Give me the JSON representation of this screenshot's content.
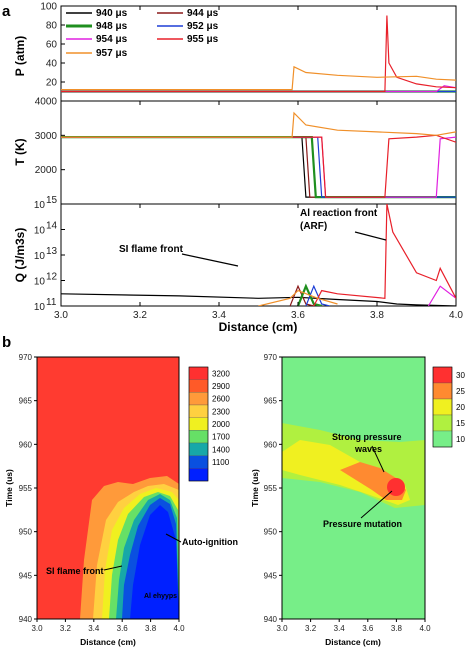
{
  "panel_labels": [
    "a",
    "b"
  ],
  "chart_data": [
    {
      "type": "line",
      "panel": "a",
      "subplot": "pressure",
      "ylabel": "P (atm)",
      "xlabel": "Distance (cm)",
      "xlim": [
        3.0,
        4.0
      ],
      "ylim": [
        0,
        100
      ],
      "xticks": [
        "3.0",
        "3.2",
        "3.4",
        "3.6",
        "3.8",
        "4.0"
      ],
      "yticks": [
        "20",
        "40",
        "60",
        "80",
        "100"
      ],
      "legend": "top-left",
      "series": [
        {
          "name": "940 μs",
          "color": "#000000",
          "x": [
            3.0,
            3.9,
            4.0
          ],
          "y": [
            10,
            10,
            10
          ]
        },
        {
          "name": "944 μs",
          "color": "#8b1a1a",
          "x": [
            3.0,
            3.9,
            4.0
          ],
          "y": [
            10,
            10,
            10
          ]
        },
        {
          "name": "948 μs",
          "color": "#1f8f1f",
          "x": [
            3.0,
            3.9,
            4.0
          ],
          "y": [
            10,
            10,
            10
          ]
        },
        {
          "name": "952 μs",
          "color": "#1e3fd6",
          "x": [
            3.0,
            3.9,
            4.0
          ],
          "y": [
            10,
            10,
            10
          ]
        },
        {
          "name": "954 μs",
          "color": "#e020e0",
          "x": [
            3.0,
            3.95,
            3.97,
            4.0
          ],
          "y": [
            10,
            10,
            16,
            14
          ]
        },
        {
          "name": "955 μs",
          "color": "#e8202a",
          "x": [
            3.0,
            3.82,
            3.825,
            3.83,
            3.85,
            3.9,
            3.95,
            4.0
          ],
          "y": [
            10,
            10,
            90,
            40,
            25,
            18,
            15,
            14
          ]
        },
        {
          "name": "957 μs",
          "color": "#f0902a",
          "x": [
            3.0,
            3.585,
            3.59,
            3.62,
            3.7,
            3.8,
            3.9,
            3.95,
            4.0
          ],
          "y": [
            12,
            12,
            36,
            30,
            27,
            25,
            26,
            23,
            22
          ]
        }
      ]
    },
    {
      "type": "line",
      "panel": "a",
      "subplot": "temperature",
      "ylabel": "T (K)",
      "xlabel": "Distance (cm)",
      "xlim": [
        3.0,
        4.0
      ],
      "ylim": [
        1000,
        4000
      ],
      "yticks": [
        "2000",
        "3000",
        "4000"
      ],
      "series": [
        {
          "name": "940 μs",
          "color": "#000000",
          "x": [
            3.0,
            3.61,
            3.62,
            4.0
          ],
          "y": [
            2950,
            2950,
            1200,
            1200
          ]
        },
        {
          "name": "944 μs",
          "color": "#8b1a1a",
          "x": [
            3.0,
            3.62,
            3.63,
            4.0
          ],
          "y": [
            2950,
            2950,
            1200,
            1200
          ]
        },
        {
          "name": "948 μs",
          "color": "#1f8f1f",
          "x": [
            3.0,
            3.635,
            3.645,
            4.0
          ],
          "y": [
            2950,
            2950,
            1200,
            1200
          ]
        },
        {
          "name": "952 μs",
          "color": "#1e3fd6",
          "x": [
            3.0,
            3.65,
            3.66,
            4.0
          ],
          "y": [
            2950,
            2950,
            1200,
            1200
          ]
        },
        {
          "name": "954 μs",
          "color": "#e020e0",
          "x": [
            3.0,
            3.66,
            3.67,
            3.95,
            3.96,
            4.0
          ],
          "y": [
            2950,
            2950,
            1200,
            1200,
            2900,
            2950
          ]
        },
        {
          "name": "955 μs",
          "color": "#e8202a",
          "x": [
            3.0,
            3.66,
            3.67,
            3.82,
            3.83,
            3.9,
            3.95,
            4.0
          ],
          "y": [
            2950,
            2950,
            1200,
            1200,
            2900,
            2950,
            3000,
            2800
          ]
        },
        {
          "name": "957 μs",
          "color": "#f0902a",
          "x": [
            3.0,
            3.585,
            3.59,
            3.62,
            3.7,
            3.8,
            3.9,
            3.95,
            4.0
          ],
          "y": [
            2950,
            2950,
            3650,
            3300,
            3150,
            3100,
            3050,
            3000,
            3100
          ]
        }
      ]
    },
    {
      "type": "line",
      "panel": "a",
      "subplot": "heat-release",
      "ylabel": "Q (J/m3s)",
      "xlabel": "Distance (cm)",
      "xlim": [
        3.0,
        4.0
      ],
      "ylim": [
        100000000000.0,
        1000000000000000.0
      ],
      "yscale": "log",
      "ytick_exponents": [
        "11",
        "12",
        "13",
        "14",
        "15"
      ],
      "annotations": [
        "SI flame front",
        "Al reaction front",
        "(ARF)"
      ],
      "series": [
        {
          "name": "940 μs",
          "color": "#000000",
          "x": [
            3.0,
            3.3,
            3.5,
            3.6,
            3.7,
            3.8,
            3.85,
            3.9,
            4.0
          ],
          "y": [
            300000000000.0,
            250000000000.0,
            200000000000.0,
            220000000000.0,
            180000000000.0,
            150000000000.0,
            120000000000.0,
            110000000000.0,
            100000000000.0
          ]
        },
        {
          "name": "944 μs",
          "color": "#8b1a1a",
          "x": [
            3.58,
            3.6,
            3.62,
            3.64
          ],
          "y": [
            100000000000.0,
            600000000000.0,
            120000000000.0,
            100000000000.0
          ]
        },
        {
          "name": "948 μs",
          "color": "#1f8f1f",
          "x": [
            3.6,
            3.62,
            3.64,
            3.66
          ],
          "y": [
            100000000000.0,
            600000000000.0,
            120000000000.0,
            100000000000.0
          ]
        },
        {
          "name": "952 μs",
          "color": "#1e3fd6",
          "x": [
            3.62,
            3.64,
            3.66,
            3.68
          ],
          "y": [
            100000000000.0,
            600000000000.0,
            120000000000.0,
            100000000000.0
          ]
        },
        {
          "name": "954 μs",
          "color": "#e020e0",
          "x": [
            3.93,
            3.96,
            4.0
          ],
          "y": [
            100000000000.0,
            600000000000.0,
            200000000000.0
          ]
        },
        {
          "name": "955 μs",
          "color": "#e8202a",
          "x": [
            3.64,
            3.66,
            3.7,
            3.82,
            3.825,
            3.84,
            3.9,
            3.95,
            3.96,
            4.0
          ],
          "y": [
            100000000000.0,
            400000000000.0,
            300000000000.0,
            200000000000.0,
            1000000000000000.0,
            80000000000000.0,
            2000000000000.0,
            1000000000000.0,
            3000000000000.0,
            200000000000.0
          ]
        },
        {
          "name": "957 μs",
          "color": "#f0902a",
          "x": [
            3.5,
            3.58,
            3.6,
            3.65,
            3.7
          ],
          "y": [
            100000000000.0,
            200000000000.0,
            400000000000.0,
            200000000000.0,
            120000000000.0
          ]
        }
      ]
    },
    {
      "type": "heatmap",
      "panel": "b",
      "subplot": "temperature-contour",
      "xlabel": "Distance (cm)",
      "ylabel": "Time (us)",
      "xlim": [
        3.0,
        4.0
      ],
      "ylim": [
        940,
        970
      ],
      "xticks": [
        "3.0",
        "3.2",
        "3.4",
        "3.6",
        "3.8",
        "4.0"
      ],
      "yticks": [
        "940",
        "945",
        "950",
        "955",
        "960",
        "965",
        "970"
      ],
      "colorbar_levels": [
        "3200",
        "2900",
        "2600",
        "2300",
        "2000",
        "1700",
        "1400",
        "1100"
      ],
      "colorbar_colors": [
        "#ff3030",
        "#ff5a28",
        "#ff9a3a",
        "#ffd040",
        "#f0f020",
        "#66e066",
        "#17a8a8",
        "#0a50e0",
        "#0020ff"
      ],
      "annotations": [
        "SI flame front",
        "Auto-ignition",
        "Al ehyyps"
      ]
    },
    {
      "type": "heatmap",
      "panel": "b",
      "subplot": "pressure-contour",
      "xlabel": "Distance (cm)",
      "ylabel": "Time (us)",
      "xlim": [
        3.0,
        4.0
      ],
      "ylim": [
        940,
        970
      ],
      "xticks": [
        "3.0",
        "3.2",
        "3.4",
        "3.6",
        "3.8",
        "4.0"
      ],
      "yticks": [
        "940",
        "945",
        "950",
        "955",
        "960",
        "965",
        "970"
      ],
      "colorbar_levels": [
        "30",
        "25",
        "20",
        "15",
        "10"
      ],
      "colorbar_colors": [
        "#ff3030",
        "#ff8a30",
        "#f0f020",
        "#b0f040",
        "#77ee88"
      ],
      "annotations": [
        "Strong pressure",
        "waves",
        "Pressure mutation"
      ]
    }
  ]
}
